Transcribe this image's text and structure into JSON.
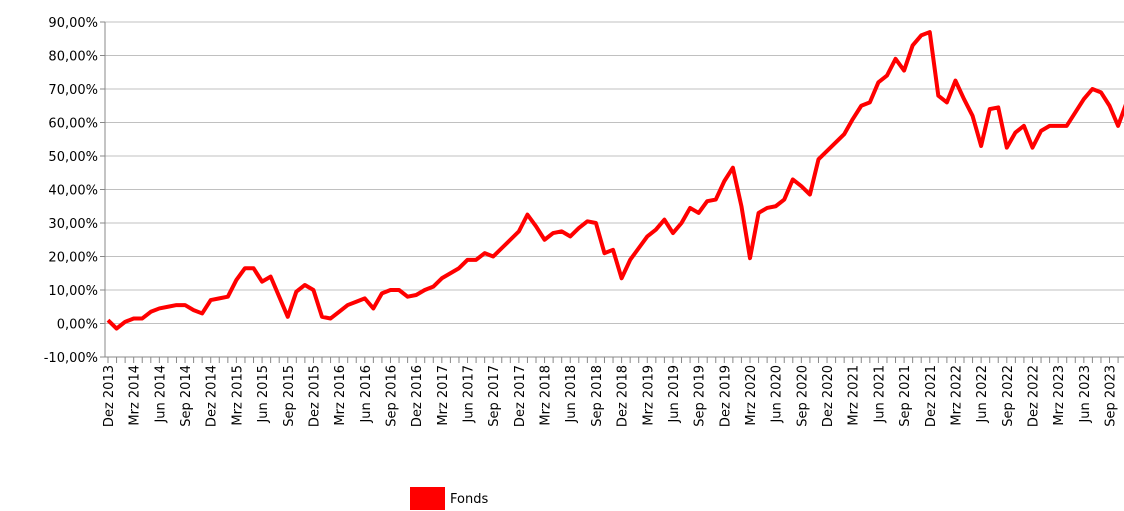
{
  "chart_data": {
    "type": "line",
    "categories": [
      "Dez 2013",
      null,
      null,
      "Mrz 2014",
      null,
      null,
      "Jun 2014",
      null,
      null,
      "Sep 2014",
      null,
      null,
      "Dez 2014",
      null,
      null,
      "Mrz 2015",
      null,
      null,
      "Jun 2015",
      null,
      null,
      "Sep 2015",
      null,
      null,
      "Dez 2015",
      null,
      null,
      "Mrz 2016",
      null,
      null,
      "Jun 2016",
      null,
      null,
      "Sep 2016",
      null,
      null,
      "Dez 2016",
      null,
      null,
      "Mrz 2017",
      null,
      null,
      "Jun 2017",
      null,
      null,
      "Sep 2017",
      null,
      null,
      "Dez 2017",
      null,
      null,
      "Mrz 2018",
      null,
      null,
      "Jun 2018",
      null,
      null,
      "Sep 2018",
      null,
      null,
      "Dez 2018",
      null,
      null,
      "Mrz 2019",
      null,
      null,
      "Jun 2019",
      null,
      null,
      "Sep 2019",
      null,
      null,
      "Dez 2019",
      null,
      null,
      "Mrz 2020",
      null,
      null,
      "Jun 2020",
      null,
      null,
      "Sep 2020",
      null,
      null,
      "Dez 2020",
      null,
      null,
      "Mrz 2021",
      null,
      null,
      "Jun 2021",
      null,
      null,
      "Sep 2021",
      null,
      null,
      "Dez 2021",
      null,
      null,
      "Mrz 2022",
      null,
      null,
      "Jun 2022",
      null,
      null,
      "Sep 2022",
      null,
      null,
      "Dez 2022",
      null,
      null,
      "Mrz 2023",
      null,
      null,
      "Jun 2023",
      null,
      null,
      "Sep 2023",
      null,
      null
    ],
    "series": [
      {
        "name": "Fonds",
        "color": "#ff0000",
        "values": [
          1,
          -1.5,
          0.5,
          1.5,
          1.5,
          3.5,
          4.5,
          5,
          5.5,
          5.5,
          4,
          3,
          7,
          7.5,
          8,
          13,
          16.5,
          16.5,
          12.5,
          14,
          8,
          2,
          9.5,
          11.5,
          10,
          2,
          1.5,
          3.5,
          5.5,
          6.5,
          7.5,
          4.5,
          9,
          10,
          10,
          8,
          8.5,
          10,
          11,
          13.5,
          15,
          16.5,
          19,
          19,
          21,
          20,
          22.5,
          25,
          27.5,
          32.5,
          29,
          25,
          27,
          27.5,
          26,
          28.5,
          30.5,
          30,
          21,
          22,
          13.5,
          19,
          22.5,
          26,
          28,
          31,
          27,
          30,
          34.5,
          33,
          36.5,
          37,
          42.5,
          46.5,
          35,
          19.5,
          33,
          34.5,
          35,
          37,
          43,
          41,
          38.5,
          49,
          51.5,
          54,
          56.5,
          61,
          65,
          66,
          72,
          74,
          79,
          75.5,
          83,
          86,
          87,
          68,
          66,
          72.5,
          67,
          62,
          53,
          64,
          64.5,
          52.5,
          57,
          59,
          52.5,
          57.5,
          59,
          59,
          59,
          63,
          67,
          70,
          69,
          65,
          59,
          66
        ]
      }
    ],
    "ylim": [
      -10,
      90
    ],
    "yticks": [
      {
        "value": -10,
        "label": "-10,00%"
      },
      {
        "value": 0,
        "label": "0,00%"
      },
      {
        "value": 10,
        "label": "10,00%"
      },
      {
        "value": 20,
        "label": "20,00%"
      },
      {
        "value": 30,
        "label": "30,00%"
      },
      {
        "value": 40,
        "label": "40,00%"
      },
      {
        "value": 50,
        "label": "50,00%"
      },
      {
        "value": 60,
        "label": "60,00%"
      },
      {
        "value": 70,
        "label": "70,00%"
      },
      {
        "value": 80,
        "label": "80,00%"
      },
      {
        "value": 90,
        "label": "90,00%"
      }
    ],
    "grid": true,
    "legend": "bottom"
  }
}
